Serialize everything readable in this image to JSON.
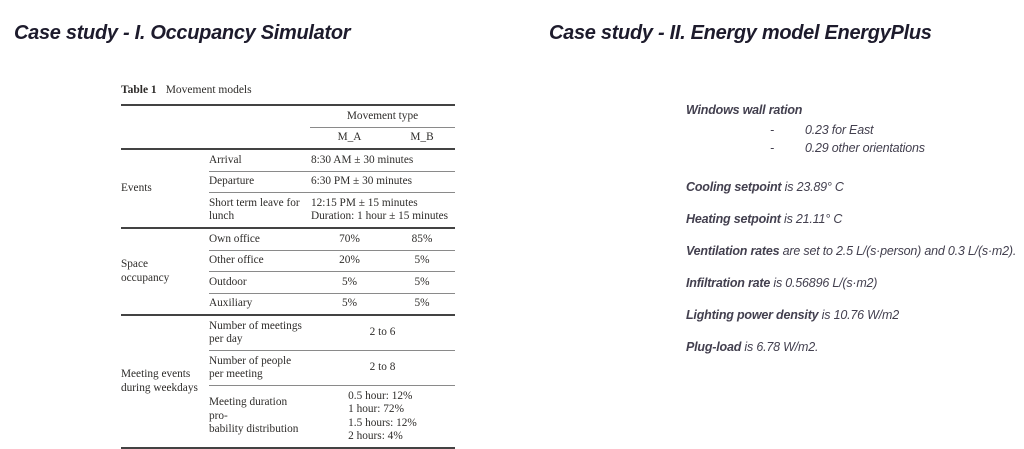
{
  "colors": {
    "title": "#1d1b2c",
    "body-text": "#43404f",
    "table-text": "#2e2c2a",
    "rule-heavy": "#434343",
    "rule-thin": "#8a8a8a",
    "background": "#ffffff"
  },
  "left": {
    "title": "Case study - I. Occupancy Simulator",
    "table": {
      "caption_label": "Table 1",
      "caption_title": "Movement models",
      "header": {
        "span_title": "Movement type",
        "col_a": "M_A",
        "col_b": "M_B"
      },
      "events": {
        "group": "Events",
        "arrival_label": "Arrival",
        "arrival_value": "8:30 AM ± 30 minutes",
        "departure_label": "Departure",
        "departure_value": "6:30 PM ± 30 minutes",
        "lunch_label_lines": [
          "Short term leave for",
          "lunch"
        ],
        "lunch_value_lines": [
          "12:15 PM ± 15 minutes",
          "Duration: 1 hour ± 15 minutes"
        ]
      },
      "occupancy": {
        "group_lines": [
          "Space",
          "occupancy"
        ],
        "rows": [
          {
            "label": "Own office",
            "m_a": "70%",
            "m_b": "85%"
          },
          {
            "label": "Other office",
            "m_a": "20%",
            "m_b": "5%"
          },
          {
            "label": "Outdoor",
            "m_a": "5%",
            "m_b": "5%"
          },
          {
            "label": "Auxiliary",
            "m_a": "5%",
            "m_b": "5%"
          }
        ]
      },
      "meetings": {
        "group_lines": [
          "Meeting events",
          "during weekdays"
        ],
        "meetings_per_day_label_lines": [
          "Number of meetings",
          "per day"
        ],
        "meetings_per_day_value": "2 to 6",
        "people_per_meeting_label_lines": [
          "Number of people",
          "per meeting"
        ],
        "people_per_meeting_value": "2 to 8",
        "duration_label_lines": [
          "Meeting duration pro-",
          "bability distribution"
        ],
        "duration_value_lines": [
          "0.5 hour: 12%",
          "1 hour: 72%",
          "1.5 hours: 12%",
          "2 hours: 4%"
        ]
      }
    }
  },
  "right": {
    "title": "Case study - II. Energy model EnergyPlus",
    "windows": {
      "heading": "Windows wall ration",
      "bullets": [
        {
          "marker": "-",
          "text": "0.23 for East"
        },
        {
          "marker": "-",
          "text": "0.29 other orientations"
        }
      ]
    },
    "parameters": [
      {
        "lead": "Cooling setpoint",
        "rest": " is 23.89° C"
      },
      {
        "lead": "Heating setpoint",
        "rest": " is 21.11° C"
      },
      {
        "lead": "Ventilation rates",
        "rest": " are set to 2.5 L/(s·person) and 0.3 L/(s·m2)."
      },
      {
        "lead": "Infiltration rate",
        "rest": " is 0.56896 L/(s·m2)"
      },
      {
        "lead": "Lighting power density",
        "rest": " is 10.76 W/m2"
      },
      {
        "lead": "Plug-load",
        "rest": " is 6.78 W/m2."
      }
    ]
  }
}
